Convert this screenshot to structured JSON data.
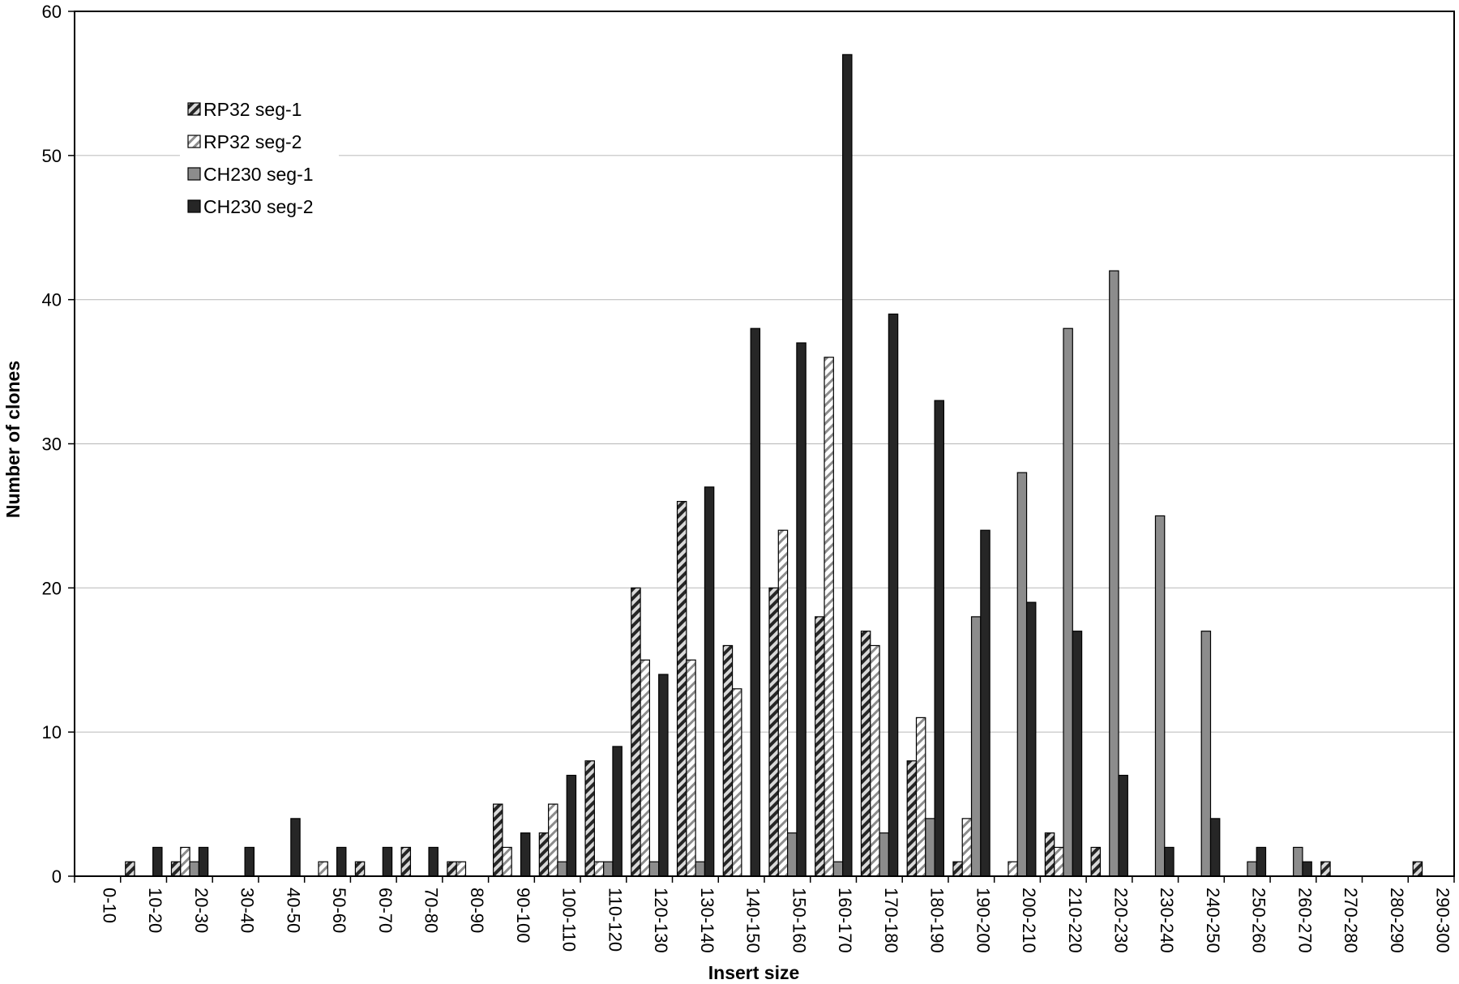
{
  "chart_data": {
    "type": "bar",
    "xlabel": "Insert size",
    "ylabel": "Number of clones",
    "ylim": [
      0,
      60
    ],
    "yticks": [
      0,
      10,
      20,
      30,
      40,
      50,
      60
    ],
    "grid": "horizontal",
    "legend_position": "top-left",
    "categories": [
      "0-10",
      "10-20",
      "20-30",
      "30-40",
      "40-50",
      "50-60",
      "60-70",
      "70-80",
      "80-90",
      "90-100",
      "100-110",
      "110-120",
      "120-130",
      "130-140",
      "140-150",
      "150-160",
      "160-170",
      "170-180",
      "180-190",
      "190-200",
      "200-210",
      "210-220",
      "220-230",
      "230-240",
      "240-250",
      "250-260",
      "260-270",
      "270-280",
      "280-290",
      "290-300"
    ],
    "series": [
      {
        "name": "RP32 seg-1",
        "pattern": "hatch-dark",
        "values": [
          0,
          1,
          1,
          0,
          0,
          0,
          1,
          2,
          1,
          5,
          3,
          8,
          20,
          26,
          16,
          20,
          18,
          17,
          8,
          1,
          0,
          3,
          2,
          0,
          0,
          0,
          0,
          1,
          0,
          1
        ]
      },
      {
        "name": "RP32 seg-2",
        "pattern": "hatch-light",
        "values": [
          0,
          0,
          2,
          0,
          0,
          1,
          0,
          0,
          1,
          2,
          5,
          1,
          15,
          15,
          13,
          24,
          36,
          16,
          11,
          4,
          1,
          2,
          0,
          0,
          0,
          0,
          0,
          0,
          0,
          0
        ]
      },
      {
        "name": "CH230 seg-1",
        "pattern": "solid-gray",
        "values": [
          0,
          0,
          1,
          0,
          0,
          0,
          0,
          0,
          0,
          0,
          1,
          1,
          1,
          1,
          0,
          3,
          1,
          3,
          4,
          18,
          28,
          38,
          42,
          25,
          17,
          1,
          2,
          0,
          0,
          0
        ]
      },
      {
        "name": "CH230 seg-2",
        "pattern": "solid-dark",
        "values": [
          0,
          2,
          2,
          2,
          4,
          2,
          2,
          2,
          0,
          3,
          7,
          9,
          14,
          27,
          38,
          37,
          57,
          39,
          33,
          24,
          19,
          17,
          7,
          2,
          4,
          2,
          1,
          0,
          0,
          0
        ]
      }
    ],
    "colors": {
      "dark": "#262626",
      "gray": "#8c8c8c",
      "light": "#ffffff",
      "grid": "#c0c0c0"
    }
  }
}
